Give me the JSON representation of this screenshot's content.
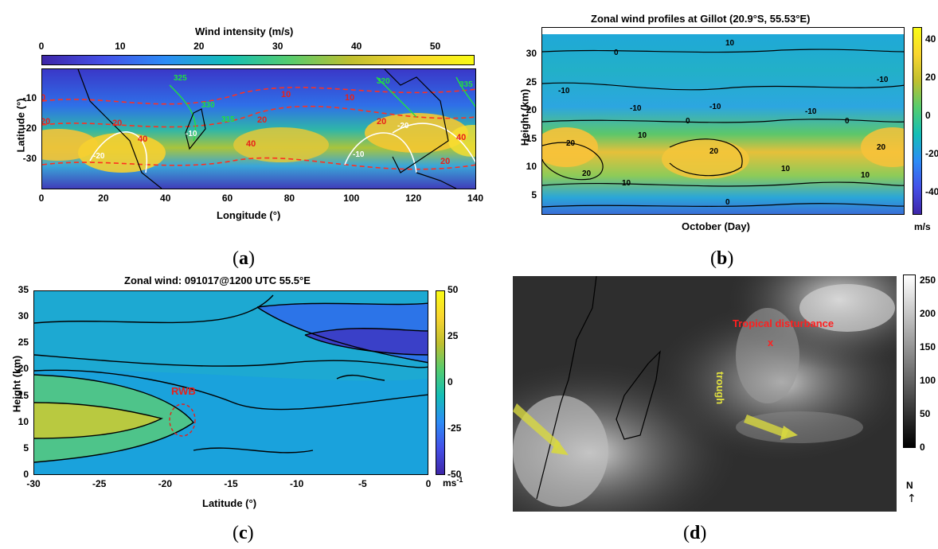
{
  "panels": {
    "a": {
      "sublabel": "a",
      "colorbar_title": "Wind intensity (m/s)",
      "colorbar_ticks": [
        "0",
        "10",
        "20",
        "30",
        "40",
        "50"
      ],
      "xlabel": "Longitude (°)",
      "ylabel": "Latitude (°)",
      "x_ticks": [
        "0",
        "20",
        "40",
        "60",
        "80",
        "100",
        "120",
        "140"
      ],
      "y_ticks": [
        "-10",
        "-20",
        "-30"
      ],
      "contour_labels_red": [
        "10",
        "20",
        "40",
        "40",
        "20",
        "10",
        "20",
        "40",
        "10",
        "20",
        "20",
        "40"
      ],
      "contour_labels_white": [
        "-20",
        "-10",
        "-10",
        "-20"
      ],
      "contour_labels_green": [
        "325",
        "330",
        "315",
        "320",
        "335"
      ]
    },
    "b": {
      "sublabel": "b",
      "title": "Zonal wind profiles at Gillot (20.9°S, 55.53°E)",
      "xlabel": "October (Day)",
      "ylabel": "Height (km)",
      "y_ticks": [
        "30",
        "25",
        "20",
        "15",
        "10",
        "5"
      ],
      "colorbar_ticks": [
        "40",
        "20",
        "0",
        "-20",
        "-40"
      ],
      "colorbar_unit": "m/s",
      "contour_labels": [
        "0",
        "10",
        "-10",
        "-10",
        "-10",
        "-10",
        "0",
        "10",
        "20",
        "20",
        "10",
        "0",
        "10",
        "20",
        "10",
        "0",
        "-10",
        "20"
      ]
    },
    "c": {
      "sublabel": "c",
      "title": "Zonal wind: 091017@1200 UTC 55.5°E",
      "xlabel": "Latitude (°)",
      "ylabel": "Height (km)",
      "x_ticks": [
        "-30",
        "-25",
        "-20",
        "-15",
        "-10",
        "-5",
        "0"
      ],
      "y_ticks": [
        "35",
        "30",
        "25",
        "20",
        "15",
        "10",
        "5",
        "0"
      ],
      "colorbar_ticks": [
        "50",
        "25",
        "0",
        "-25",
        "-50"
      ],
      "colorbar_unit": "ms",
      "colorbar_unit_exp": "-1",
      "annotation": "RWB"
    },
    "d": {
      "sublabel": "d",
      "colorbar_ticks": [
        "250",
        "200",
        "150",
        "100",
        "50",
        "0"
      ],
      "annotation_disturbance": "Tropical disturbance",
      "annotation_x": "x",
      "annotation_trough": "trough",
      "north_label": "N"
    }
  },
  "colors": {
    "parula_low": "#3e26a8",
    "parula_mid": "#13beb7",
    "parula_high": "#f9fb15",
    "red_contour": "#e8201a",
    "annotation_red": "#ff2020",
    "arrow_yellow": "#d8d840"
  },
  "chart_data": [
    {
      "type": "heatmap",
      "panel": "a",
      "title": "Wind intensity (m/s)",
      "xlabel": "Longitude (°)",
      "ylabel": "Latitude (°)",
      "xlim": [
        0,
        140
      ],
      "ylim": [
        -40,
        0
      ],
      "colorbar_range": [
        0,
        55
      ],
      "description_jetstream_max_latitude": -25
    },
    {
      "type": "heatmap",
      "panel": "b",
      "title": "Zonal wind profiles at Gillot (20.9°S, 55.53°E)",
      "xlabel": "October (Day)",
      "ylabel": "Height (km)",
      "ylim": [
        1,
        35
      ],
      "colorbar_range": [
        -50,
        50
      ],
      "jet_core_height_km": 12
    },
    {
      "type": "heatmap",
      "panel": "c",
      "title": "Zonal wind: 091017@1200 UTC 55.5°E",
      "xlabel": "Latitude (°)",
      "ylabel": "Height (km)",
      "xlim": [
        -30,
        0
      ],
      "ylim": [
        0,
        35
      ],
      "colorbar_range": [
        -50,
        50
      ],
      "annotation": "RWB",
      "annotation_position": [
        -19,
        11
      ]
    },
    {
      "type": "heatmap",
      "panel": "d",
      "colorbar_range": [
        0,
        255
      ]
    }
  ]
}
